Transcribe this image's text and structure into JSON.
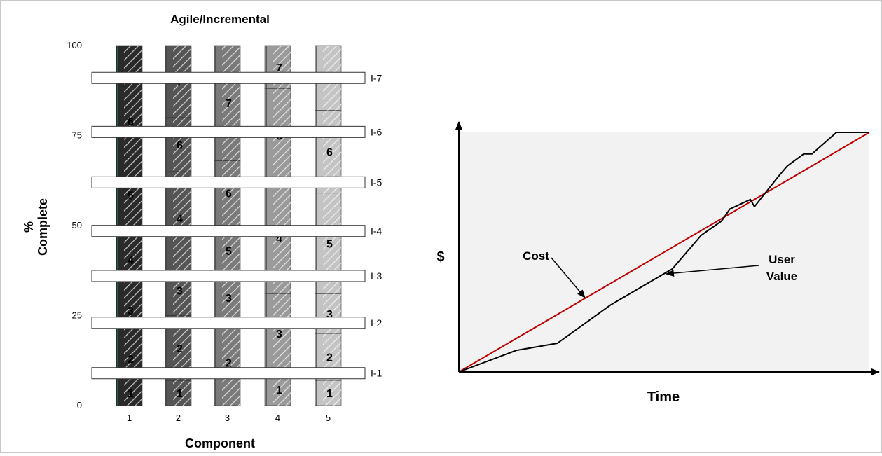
{
  "chart_data": [
    {
      "type": "bar",
      "title": "Agile/Incremental",
      "xlabel": "Component",
      "ylabel_line1": "%",
      "ylabel_line2": "Complete",
      "ylim": [
        0,
        100
      ],
      "yticks": [
        0,
        25,
        50,
        75,
        100
      ],
      "categories": [
        "1",
        "2",
        "3",
        "4",
        "5"
      ],
      "increments": [
        {
          "label": "I-1",
          "value": 9
        },
        {
          "label": "I-2",
          "value": 23
        },
        {
          "label": "I-3",
          "value": 36
        },
        {
          "label": "I-4",
          "value": 48.5
        },
        {
          "label": "I-5",
          "value": 62
        },
        {
          "label": "I-6",
          "value": 76
        },
        {
          "label": "I-7",
          "value": 91
        }
      ],
      "columns": [
        {
          "component": "1",
          "base_color": "#2a2a2a",
          "segments": [
            {
              "label": "1",
              "from": 0,
              "to": 7
            },
            {
              "label": "2",
              "from": 7,
              "to": 19
            },
            {
              "label": "3",
              "from": 19,
              "to": 34
            },
            {
              "label": "4",
              "from": 34,
              "to": 47
            },
            {
              "label": "5",
              "from": 47,
              "to": 70
            },
            {
              "label": "6",
              "from": 70,
              "to": 88
            },
            {
              "label": "",
              "from": 88,
              "to": 100
            }
          ]
        },
        {
          "component": "2",
          "base_color": "#555555",
          "segments": [
            {
              "label": "1",
              "from": 0,
              "to": 7
            },
            {
              "label": "2",
              "from": 7,
              "to": 25
            },
            {
              "label": "3",
              "from": 25,
              "to": 39
            },
            {
              "label": "4",
              "from": 39,
              "to": 65
            },
            {
              "label": "6",
              "from": 65,
              "to": 80
            },
            {
              "label": "7",
              "from": 80,
              "to": 100
            }
          ]
        },
        {
          "component": "3",
          "base_color": "#7a7a7a",
          "segments": [
            {
              "label": "2",
              "from": 0,
              "to": 24
            },
            {
              "label": "3",
              "from": 24,
              "to": 36
            },
            {
              "label": "5",
              "from": 36,
              "to": 50
            },
            {
              "label": "6",
              "from": 50,
              "to": 68
            },
            {
              "label": "7",
              "from": 68,
              "to": 100
            }
          ]
        },
        {
          "component": "4",
          "base_color": "#9a9a9a",
          "segments": [
            {
              "label": "1",
              "from": 0,
              "to": 9
            },
            {
              "label": "3",
              "from": 9,
              "to": 31
            },
            {
              "label": "4",
              "from": 31,
              "to": 62
            },
            {
              "label": "6",
              "from": 62,
              "to": 88
            },
            {
              "label": "7",
              "from": 88,
              "to": 100
            }
          ]
        },
        {
          "component": "5",
          "base_color": "#c4c4c4",
          "segments": [
            {
              "label": "1",
              "from": 0,
              "to": 7
            },
            {
              "label": "2",
              "from": 7,
              "to": 20
            },
            {
              "label": "3",
              "from": 20,
              "to": 31
            },
            {
              "label": "5",
              "from": 31,
              "to": 59
            },
            {
              "label": "6",
              "from": 59,
              "to": 82
            },
            {
              "label": "7",
              "from": 82,
              "to": 100
            }
          ]
        }
      ]
    },
    {
      "type": "line",
      "xlabel": "Time",
      "ylabel": "$",
      "grid": false,
      "xlim": [
        0,
        100
      ],
      "ylim": [
        0,
        100
      ],
      "annotations": [
        {
          "text": "Cost",
          "target_series": "Cost"
        },
        {
          "text_line1": "User",
          "text_line2": "Value",
          "target_series": "User Value"
        }
      ],
      "series": [
        {
          "name": "Cost",
          "color": "#c00000",
          "x": [
            0,
            100
          ],
          "y": [
            0,
            100
          ]
        },
        {
          "name": "User Value",
          "color": "#000000",
          "x": [
            0,
            14,
            24,
            37,
            47,
            52,
            59,
            64,
            66,
            71,
            72,
            78,
            80,
            84,
            86,
            90,
            92,
            95,
            100
          ],
          "y": [
            0,
            9,
            12,
            28,
            38,
            43,
            57,
            63,
            68,
            72,
            69,
            82,
            86,
            91,
            91,
            97,
            100,
            100,
            100
          ]
        }
      ]
    }
  ]
}
